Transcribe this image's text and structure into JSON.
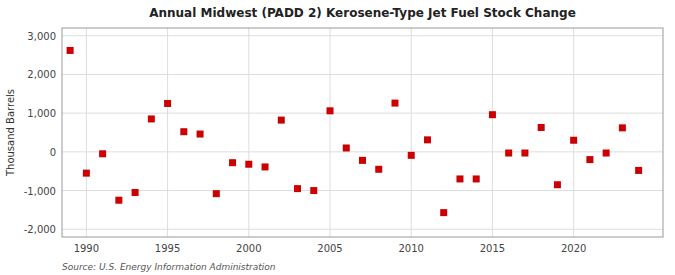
{
  "chart_data": {
    "type": "scatter",
    "title": "Annual Midwest (PADD 2) Kerosene-Type Jet Fuel Stock Change",
    "ylabel": "Thousand Barrels",
    "annotations": [
      "Source: U.S. Energy Information Administration"
    ],
    "x": [
      1989,
      1990,
      1991,
      1992,
      1993,
      1994,
      1995,
      1996,
      1997,
      1998,
      1999,
      2000,
      2001,
      2002,
      2003,
      2004,
      2005,
      2006,
      2007,
      2008,
      2009,
      2010,
      2011,
      2012,
      2013,
      2014,
      2015,
      2016,
      2017,
      2018,
      2019,
      2020,
      2021,
      2022,
      2023,
      2024
    ],
    "values": [
      2620,
      -550,
      -50,
      -1250,
      -1050,
      850,
      1250,
      520,
      460,
      -1080,
      -280,
      -320,
      -390,
      820,
      -950,
      -1000,
      1060,
      100,
      -220,
      -450,
      1260,
      -90,
      310,
      -1570,
      -700,
      -700,
      960,
      -30,
      -30,
      630,
      -850,
      300,
      -200,
      -30,
      620,
      -480
    ],
    "color": "#cc0000",
    "marker": "square",
    "xlim": [
      1988.5,
      2025.5
    ],
    "ylim": [
      -2200,
      3200
    ],
    "xticks": [
      1990,
      1995,
      2000,
      2005,
      2010,
      2015,
      2020
    ],
    "yticks": [
      {
        "value": -2000,
        "label": "-2,000"
      },
      {
        "value": -1000,
        "label": "-1,000"
      },
      0,
      {
        "value": 1000,
        "label": "1,000"
      },
      {
        "value": 2000,
        "label": "2,000"
      },
      {
        "value": 3000,
        "label": "3,000"
      }
    ],
    "grid": true
  }
}
